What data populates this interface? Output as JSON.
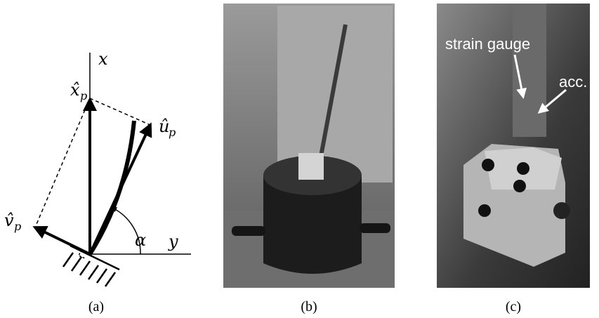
{
  "panels": [
    {
      "caption": "(a)",
      "labels": {
        "x_axis": "x",
        "y_axis": "y",
        "x_hat": "x̂",
        "u_hat": "û",
        "v_hat": "v̂",
        "subscript": "p",
        "angle": "α"
      }
    },
    {
      "caption": "(b)"
    },
    {
      "caption": "(c)",
      "labels": {
        "strain": "strain gauge",
        "acc": "acc."
      }
    }
  ]
}
